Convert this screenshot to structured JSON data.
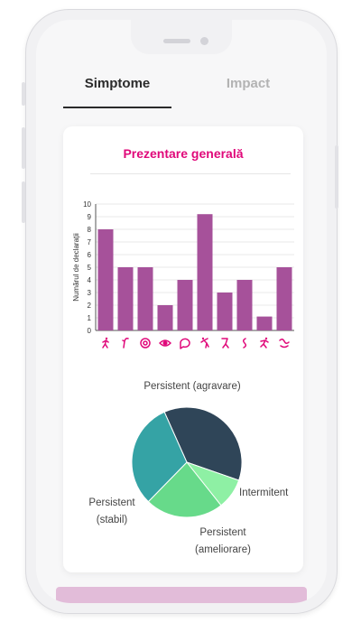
{
  "tabs": {
    "active": "Simptome",
    "inactive": "Impact"
  },
  "card": {
    "title": "Prezentare generală"
  },
  "chart_data": [
    {
      "type": "bar",
      "title": "",
      "xlabel": "",
      "ylabel": "Numărul de declarații",
      "ylim": [
        0,
        10
      ],
      "yticks": [
        0,
        1,
        2,
        3,
        4,
        5,
        6,
        7,
        8,
        9,
        10
      ],
      "categories": [
        "walking-icon",
        "finger-icon",
        "flower-icon",
        "eye-icon",
        "speech-icon",
        "bending-icon",
        "leg-icon",
        "arm-icon",
        "person-icon",
        "wave-icon"
      ],
      "values": [
        8,
        5,
        5,
        2,
        4,
        9.2,
        3,
        4,
        1.1,
        5
      ],
      "grid": true,
      "bar_color": "#a6519a",
      "icon_color": "#e0097a"
    },
    {
      "type": "pie",
      "title": "",
      "slices": [
        {
          "label": "Persistent (agravare)",
          "value": 37,
          "color": "#2f4558"
        },
        {
          "label": "Intermitent",
          "value": 9,
          "color": "#8ef0a4"
        },
        {
          "label": "Persistent (ameliorare)",
          "value": 23,
          "color": "#67da8a"
        },
        {
          "label": "Persistent (stabil)",
          "value": 31,
          "color": "#35a3a5"
        }
      ]
    }
  ],
  "pie_labels": {
    "agravare": "Persistent (agravare)",
    "intermitent": "Intermitent",
    "ameliorare_1": "Persistent",
    "ameliorare_2": "(ameliorare)",
    "stabil_1": "Persistent",
    "stabil_2": "(stabil)"
  }
}
